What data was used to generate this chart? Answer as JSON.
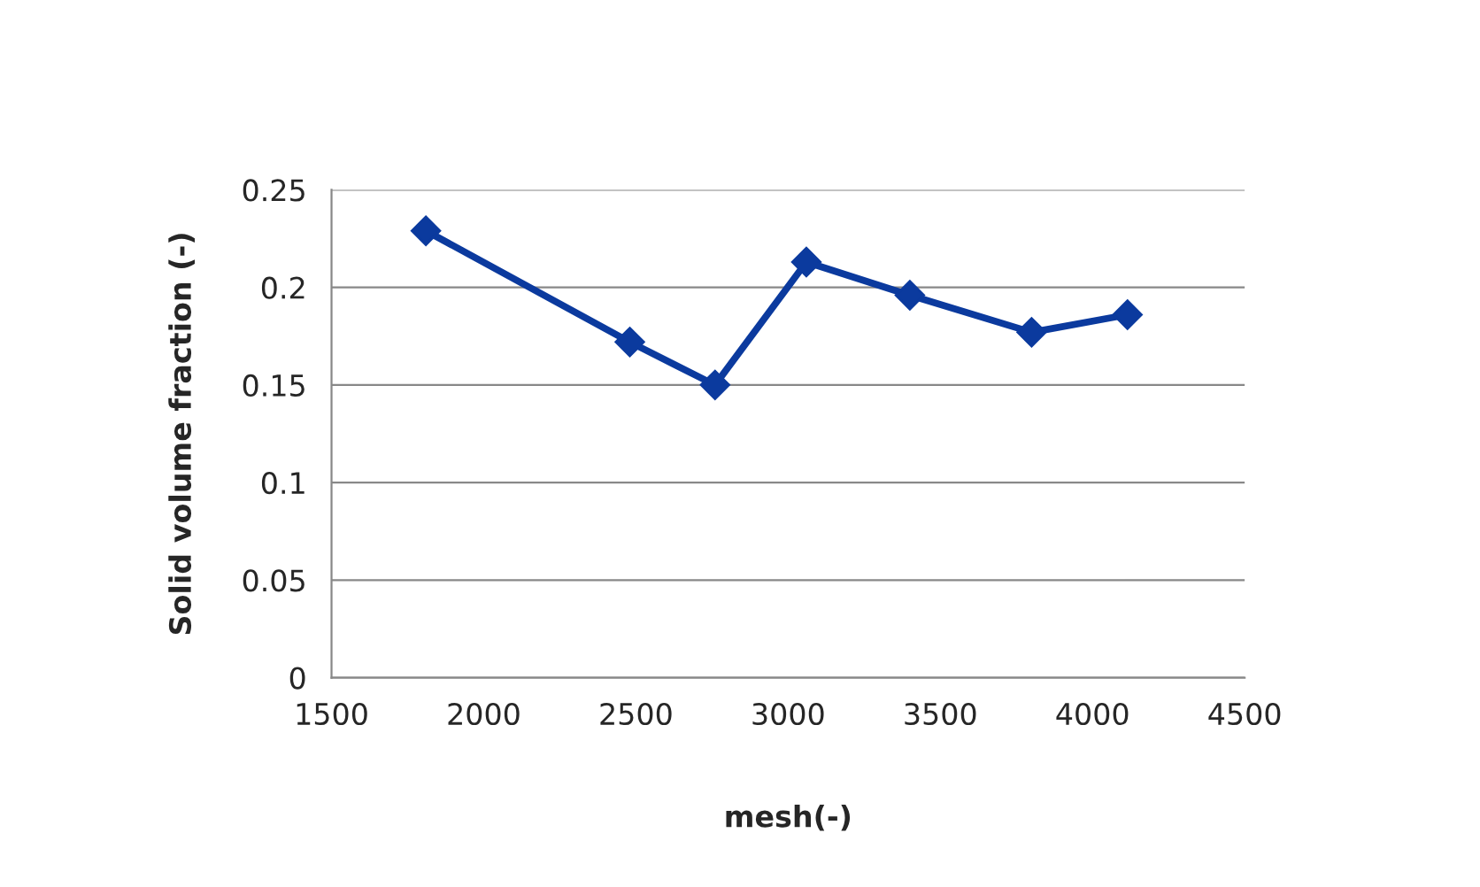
{
  "chart_data": {
    "type": "line",
    "xlabel": "mesh(-)",
    "ylabel": "Solid volume fraction (-)",
    "x": [
      1810,
      2480,
      2760,
      3060,
      3400,
      3800,
      4115
    ],
    "series": [
      {
        "color": "#0b3a9e",
        "values": [
          0.229,
          0.172,
          0.15,
          0.213,
          0.196,
          0.177,
          0.186
        ]
      }
    ],
    "xlim": [
      1500,
      4500
    ],
    "xticks": [
      1500,
      2000,
      2500,
      3000,
      3500,
      4000,
      4500
    ],
    "ylim": [
      0,
      0.25
    ],
    "yticks": [
      0,
      0.05,
      0.1,
      0.15,
      0.2,
      0.25
    ],
    "grid": "y",
    "marker": "diamond",
    "line_style": "solid",
    "legend": false
  }
}
